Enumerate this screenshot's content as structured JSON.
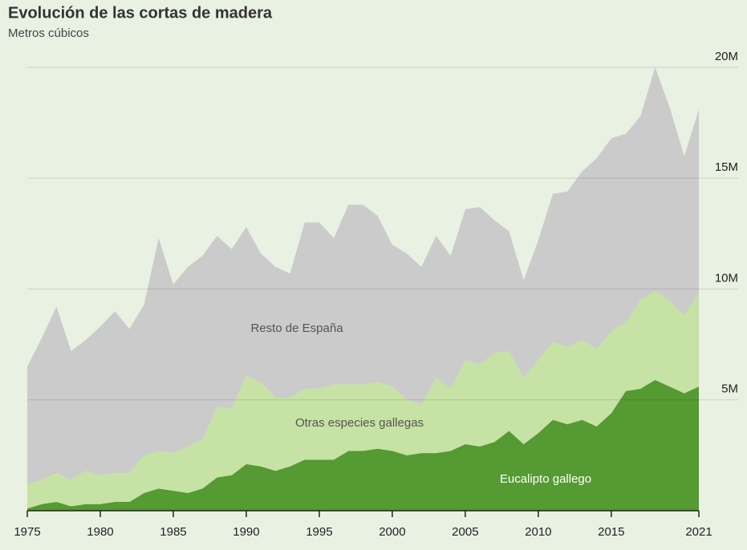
{
  "chart_data": {
    "type": "stacked_area",
    "title": "Evolución de las cortas de madera",
    "subtitle": "Metros cúbicos",
    "x": [
      1975,
      1976,
      1977,
      1978,
      1979,
      1980,
      1981,
      1982,
      1983,
      1984,
      1985,
      1986,
      1987,
      1988,
      1989,
      1990,
      1991,
      1992,
      1993,
      1994,
      1995,
      1996,
      1997,
      1998,
      1999,
      2000,
      2001,
      2002,
      2003,
      2004,
      2005,
      2006,
      2007,
      2008,
      2009,
      2010,
      2011,
      2012,
      2013,
      2014,
      2015,
      2016,
      2017,
      2018,
      2019,
      2020,
      2021
    ],
    "xlim": [
      1975,
      2021
    ],
    "xticks": [
      1975,
      1980,
      1985,
      1990,
      1995,
      2000,
      2005,
      2010,
      2015,
      2021
    ],
    "ylim": [
      0,
      20000000
    ],
    "yticks": [
      {
        "value": 5000000,
        "label": "5M"
      },
      {
        "value": 10000000,
        "label": "10M"
      },
      {
        "value": 15000000,
        "label": "15M"
      },
      {
        "value": 20000000,
        "label": "20M"
      }
    ],
    "grid": true,
    "series": [
      {
        "name": "Eucalipto gallego",
        "color": "#559a32",
        "values": [
          100000,
          300000,
          400000,
          200000,
          300000,
          300000,
          400000,
          400000,
          800000,
          1000000,
          900000,
          800000,
          1000000,
          1500000,
          1600000,
          2100000,
          2000000,
          1800000,
          2000000,
          2300000,
          2300000,
          2300000,
          2700000,
          2700000,
          2800000,
          2700000,
          2500000,
          2600000,
          2600000,
          2700000,
          3000000,
          2900000,
          3100000,
          3600000,
          3000000,
          3500000,
          4100000,
          3900000,
          4100000,
          3800000,
          4400000,
          5400000,
          5500000,
          5900000,
          5600000,
          5300000,
          5600000
        ]
      },
      {
        "name": "Otras especies gallegas",
        "color": "#c6e2a4",
        "values": [
          1100000,
          1100000,
          1300000,
          1200000,
          1500000,
          1300000,
          1300000,
          1300000,
          1700000,
          1700000,
          1700000,
          2100000,
          2200000,
          3200000,
          3000000,
          4000000,
          3800000,
          3300000,
          3100000,
          3200000,
          3200000,
          3400000,
          3000000,
          3000000,
          3000000,
          2900000,
          2500000,
          2200000,
          3400000,
          2800000,
          3800000,
          3700000,
          4000000,
          3600000,
          3000000,
          3300000,
          3500000,
          3500000,
          3600000,
          3500000,
          3700000,
          3100000,
          4000000,
          4000000,
          3900000,
          3500000,
          4200000
        ]
      },
      {
        "name": "Resto de España",
        "color": "#cbcbcb",
        "values": [
          5300000,
          6400000,
          7500000,
          5800000,
          5900000,
          6700000,
          7300000,
          6500000,
          6800000,
          9600000,
          7600000,
          8100000,
          8300000,
          7700000,
          7200000,
          6700000,
          5800000,
          5900000,
          5600000,
          7500000,
          7500000,
          6600000,
          8100000,
          8100000,
          7500000,
          6400000,
          6600000,
          6200000,
          6400000,
          6000000,
          6800000,
          7100000,
          6000000,
          5400000,
          4400000,
          5400000,
          6700000,
          7000000,
          7600000,
          8600000,
          8700000,
          8500000,
          8300000,
          10100000,
          8700000,
          7200000,
          8300000
        ]
      }
    ]
  }
}
